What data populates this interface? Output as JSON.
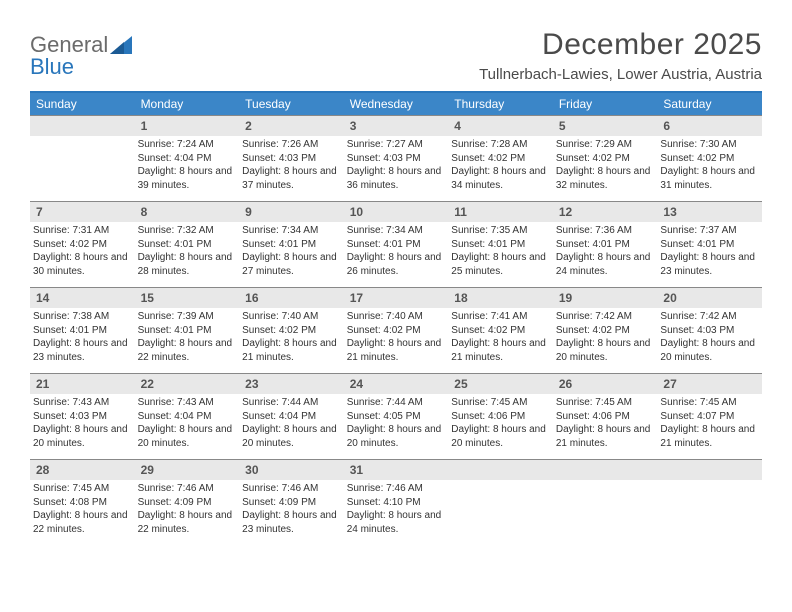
{
  "brand": {
    "part1": "General",
    "part2": "Blue"
  },
  "title": "December 2025",
  "location": "Tullnerbach-Lawies, Lower Austria, Austria",
  "colors": {
    "header_bg": "#3b86c8",
    "header_text": "#ffffff",
    "accent": "#2976bb",
    "daynum_bg": "#e8e8e8",
    "body_text": "#333333",
    "logo_grey": "#6b6b6b"
  },
  "dow": [
    "Sunday",
    "Monday",
    "Tuesday",
    "Wednesday",
    "Thursday",
    "Friday",
    "Saturday"
  ],
  "first_dow": 1,
  "days": [
    {
      "n": "1",
      "sunrise": "Sunrise: 7:24 AM",
      "sunset": "Sunset: 4:04 PM",
      "daylight": "Daylight: 8 hours and 39 minutes."
    },
    {
      "n": "2",
      "sunrise": "Sunrise: 7:26 AM",
      "sunset": "Sunset: 4:03 PM",
      "daylight": "Daylight: 8 hours and 37 minutes."
    },
    {
      "n": "3",
      "sunrise": "Sunrise: 7:27 AM",
      "sunset": "Sunset: 4:03 PM",
      "daylight": "Daylight: 8 hours and 36 minutes."
    },
    {
      "n": "4",
      "sunrise": "Sunrise: 7:28 AM",
      "sunset": "Sunset: 4:02 PM",
      "daylight": "Daylight: 8 hours and 34 minutes."
    },
    {
      "n": "5",
      "sunrise": "Sunrise: 7:29 AM",
      "sunset": "Sunset: 4:02 PM",
      "daylight": "Daylight: 8 hours and 32 minutes."
    },
    {
      "n": "6",
      "sunrise": "Sunrise: 7:30 AM",
      "sunset": "Sunset: 4:02 PM",
      "daylight": "Daylight: 8 hours and 31 minutes."
    },
    {
      "n": "7",
      "sunrise": "Sunrise: 7:31 AM",
      "sunset": "Sunset: 4:02 PM",
      "daylight": "Daylight: 8 hours and 30 minutes."
    },
    {
      "n": "8",
      "sunrise": "Sunrise: 7:32 AM",
      "sunset": "Sunset: 4:01 PM",
      "daylight": "Daylight: 8 hours and 28 minutes."
    },
    {
      "n": "9",
      "sunrise": "Sunrise: 7:34 AM",
      "sunset": "Sunset: 4:01 PM",
      "daylight": "Daylight: 8 hours and 27 minutes."
    },
    {
      "n": "10",
      "sunrise": "Sunrise: 7:34 AM",
      "sunset": "Sunset: 4:01 PM",
      "daylight": "Daylight: 8 hours and 26 minutes."
    },
    {
      "n": "11",
      "sunrise": "Sunrise: 7:35 AM",
      "sunset": "Sunset: 4:01 PM",
      "daylight": "Daylight: 8 hours and 25 minutes."
    },
    {
      "n": "12",
      "sunrise": "Sunrise: 7:36 AM",
      "sunset": "Sunset: 4:01 PM",
      "daylight": "Daylight: 8 hours and 24 minutes."
    },
    {
      "n": "13",
      "sunrise": "Sunrise: 7:37 AM",
      "sunset": "Sunset: 4:01 PM",
      "daylight": "Daylight: 8 hours and 23 minutes."
    },
    {
      "n": "14",
      "sunrise": "Sunrise: 7:38 AM",
      "sunset": "Sunset: 4:01 PM",
      "daylight": "Daylight: 8 hours and 23 minutes."
    },
    {
      "n": "15",
      "sunrise": "Sunrise: 7:39 AM",
      "sunset": "Sunset: 4:01 PM",
      "daylight": "Daylight: 8 hours and 22 minutes."
    },
    {
      "n": "16",
      "sunrise": "Sunrise: 7:40 AM",
      "sunset": "Sunset: 4:02 PM",
      "daylight": "Daylight: 8 hours and 21 minutes."
    },
    {
      "n": "17",
      "sunrise": "Sunrise: 7:40 AM",
      "sunset": "Sunset: 4:02 PM",
      "daylight": "Daylight: 8 hours and 21 minutes."
    },
    {
      "n": "18",
      "sunrise": "Sunrise: 7:41 AM",
      "sunset": "Sunset: 4:02 PM",
      "daylight": "Daylight: 8 hours and 21 minutes."
    },
    {
      "n": "19",
      "sunrise": "Sunrise: 7:42 AM",
      "sunset": "Sunset: 4:02 PM",
      "daylight": "Daylight: 8 hours and 20 minutes."
    },
    {
      "n": "20",
      "sunrise": "Sunrise: 7:42 AM",
      "sunset": "Sunset: 4:03 PM",
      "daylight": "Daylight: 8 hours and 20 minutes."
    },
    {
      "n": "21",
      "sunrise": "Sunrise: 7:43 AM",
      "sunset": "Sunset: 4:03 PM",
      "daylight": "Daylight: 8 hours and 20 minutes."
    },
    {
      "n": "22",
      "sunrise": "Sunrise: 7:43 AM",
      "sunset": "Sunset: 4:04 PM",
      "daylight": "Daylight: 8 hours and 20 minutes."
    },
    {
      "n": "23",
      "sunrise": "Sunrise: 7:44 AM",
      "sunset": "Sunset: 4:04 PM",
      "daylight": "Daylight: 8 hours and 20 minutes."
    },
    {
      "n": "24",
      "sunrise": "Sunrise: 7:44 AM",
      "sunset": "Sunset: 4:05 PM",
      "daylight": "Daylight: 8 hours and 20 minutes."
    },
    {
      "n": "25",
      "sunrise": "Sunrise: 7:45 AM",
      "sunset": "Sunset: 4:06 PM",
      "daylight": "Daylight: 8 hours and 20 minutes."
    },
    {
      "n": "26",
      "sunrise": "Sunrise: 7:45 AM",
      "sunset": "Sunset: 4:06 PM",
      "daylight": "Daylight: 8 hours and 21 minutes."
    },
    {
      "n": "27",
      "sunrise": "Sunrise: 7:45 AM",
      "sunset": "Sunset: 4:07 PM",
      "daylight": "Daylight: 8 hours and 21 minutes."
    },
    {
      "n": "28",
      "sunrise": "Sunrise: 7:45 AM",
      "sunset": "Sunset: 4:08 PM",
      "daylight": "Daylight: 8 hours and 22 minutes."
    },
    {
      "n": "29",
      "sunrise": "Sunrise: 7:46 AM",
      "sunset": "Sunset: 4:09 PM",
      "daylight": "Daylight: 8 hours and 22 minutes."
    },
    {
      "n": "30",
      "sunrise": "Sunrise: 7:46 AM",
      "sunset": "Sunset: 4:09 PM",
      "daylight": "Daylight: 8 hours and 23 minutes."
    },
    {
      "n": "31",
      "sunrise": "Sunrise: 7:46 AM",
      "sunset": "Sunset: 4:10 PM",
      "daylight": "Daylight: 8 hours and 24 minutes."
    }
  ]
}
